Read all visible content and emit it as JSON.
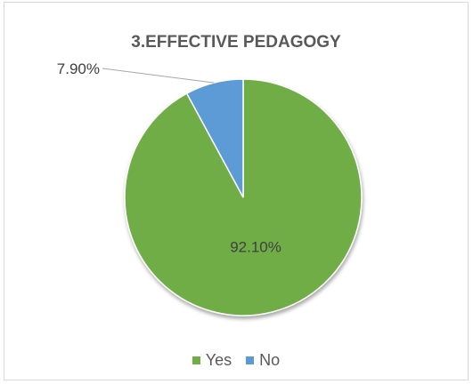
{
  "chart_data": {
    "type": "pie",
    "title": "3.EFFECTIVE PEDAGOGY",
    "categories": [
      "Yes",
      "No"
    ],
    "values": [
      92.1,
      7.9
    ],
    "labels": [
      "92.10%",
      "7.90%"
    ],
    "colors": [
      "#70ad47",
      "#5b9bd5"
    ],
    "legend_position": "bottom"
  },
  "legend": {
    "items": [
      {
        "label": "Yes",
        "color": "#70ad47"
      },
      {
        "label": "No",
        "color": "#5b9bd5"
      }
    ]
  }
}
